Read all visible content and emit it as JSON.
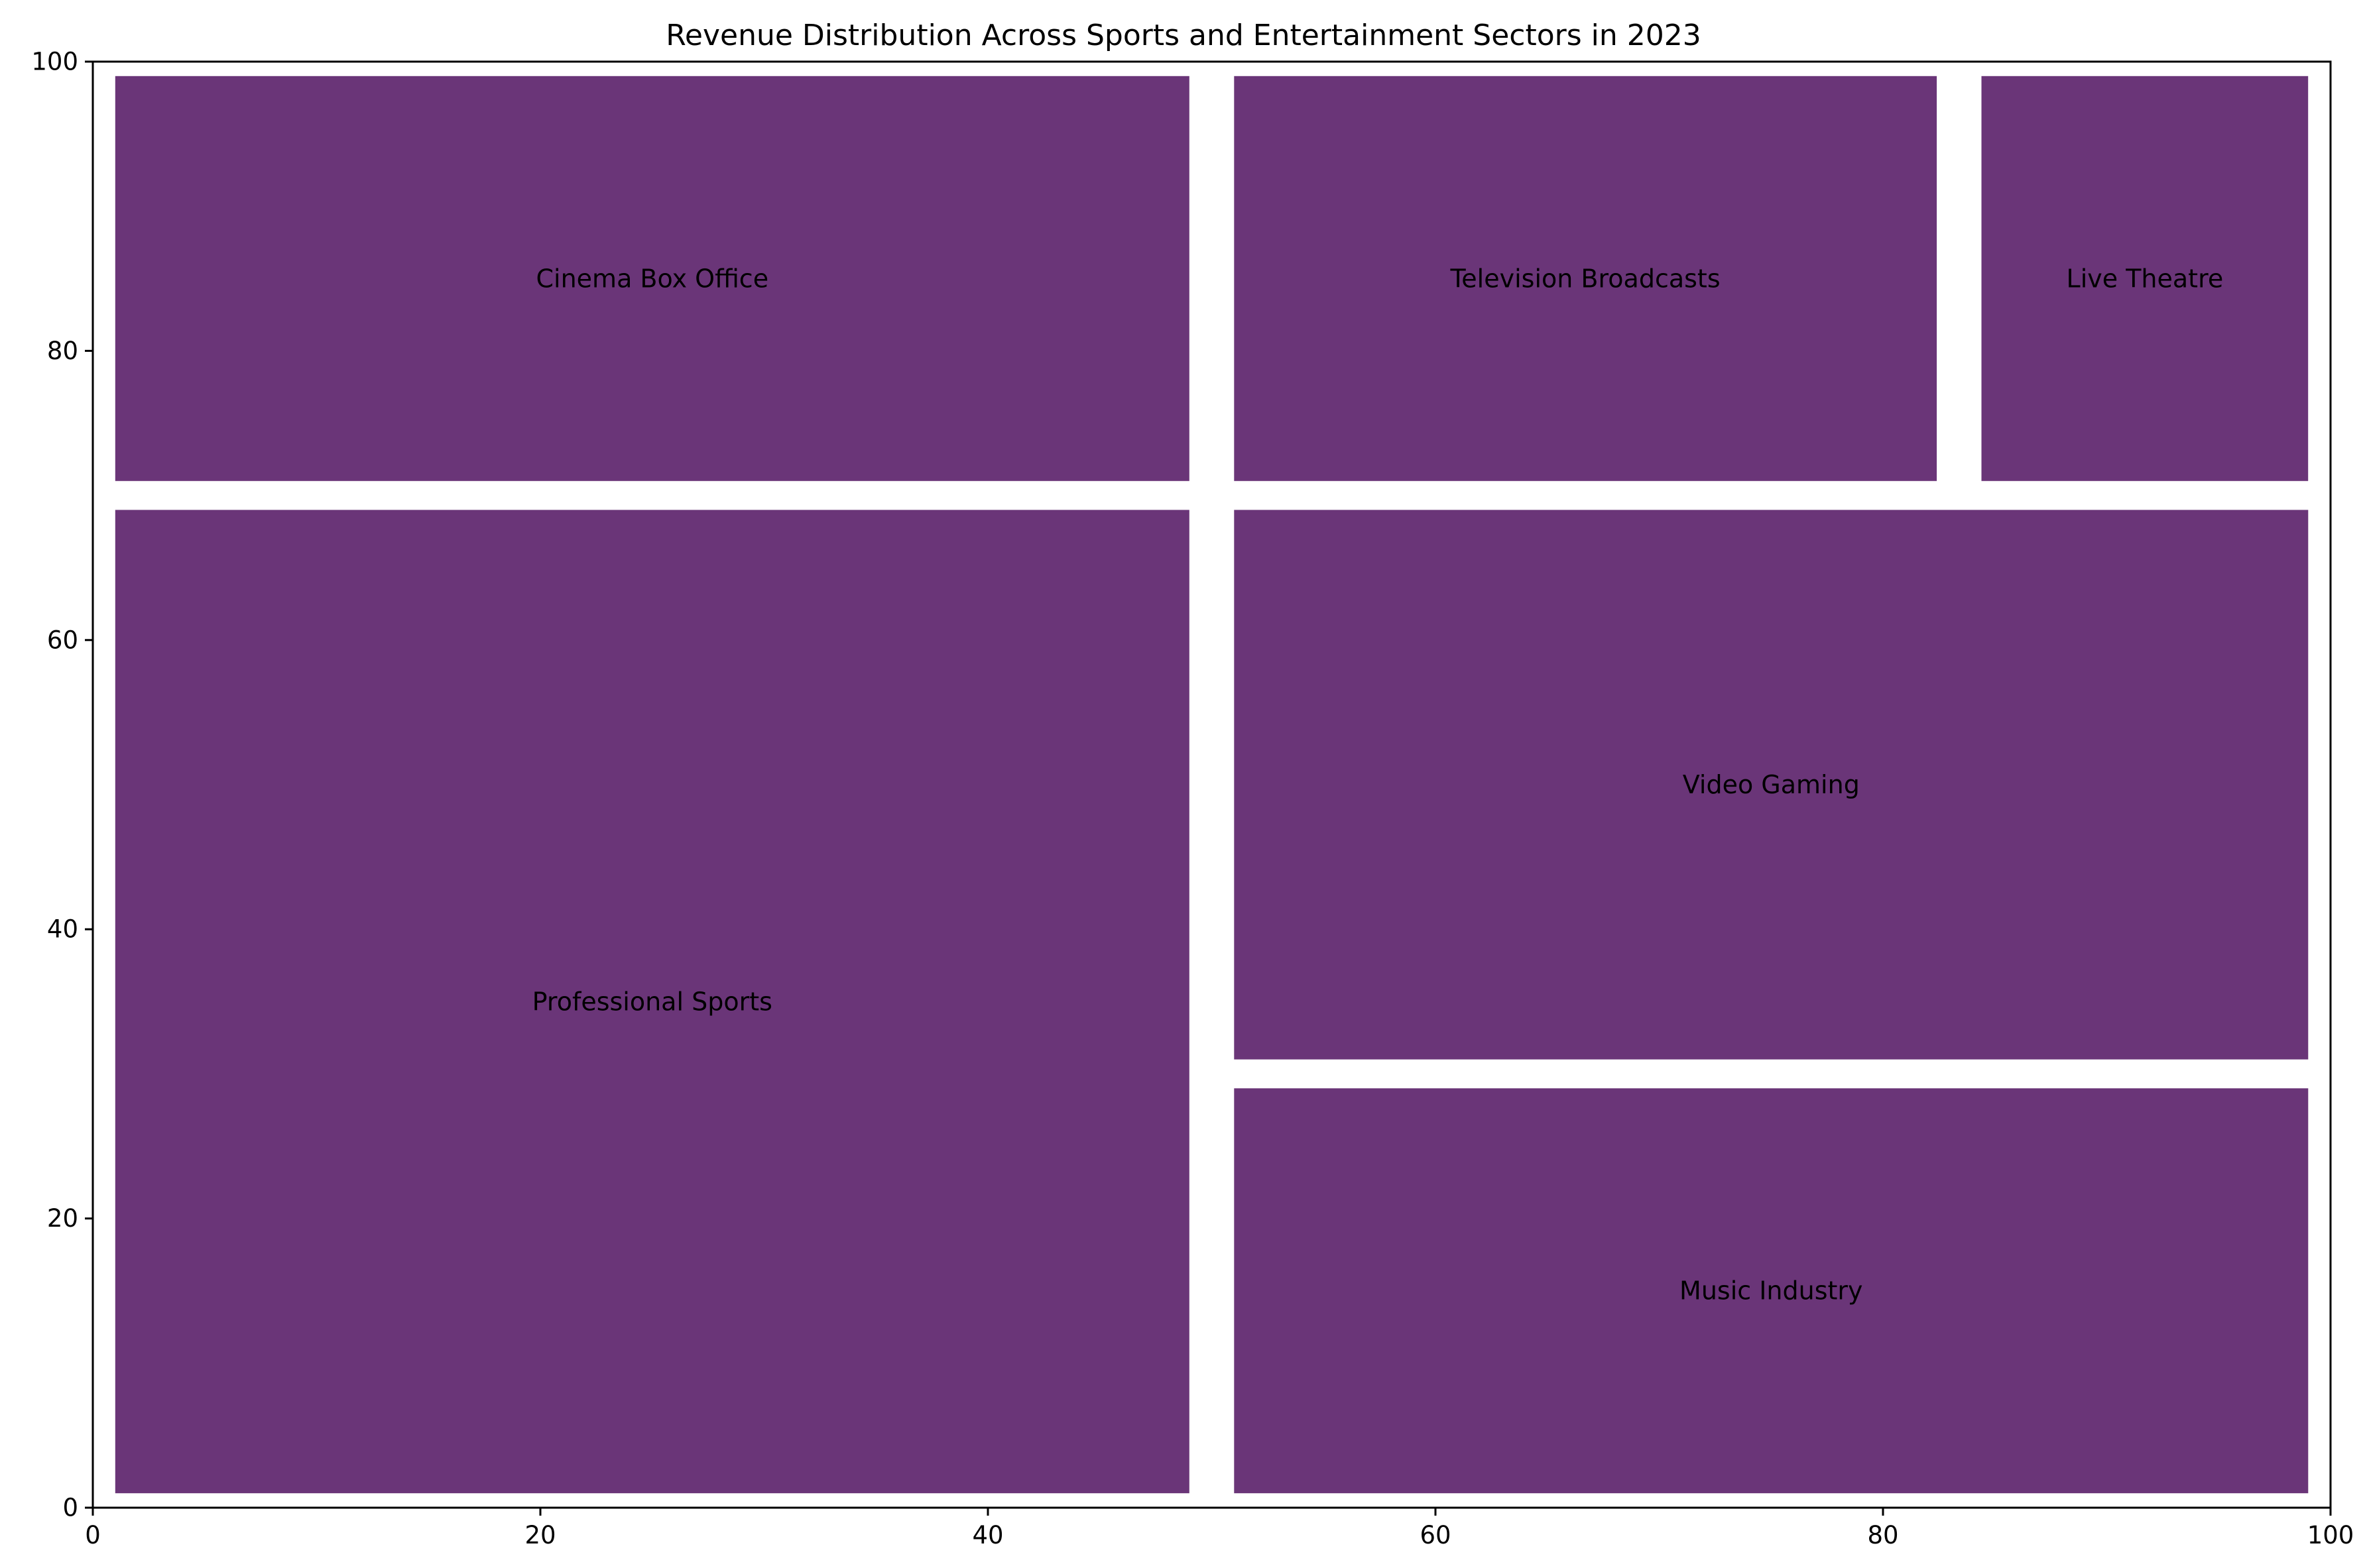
{
  "chart_data": {
    "type": "treemap",
    "title": "Revenue Distribution Across Sports and Entertainment Sectors in 2023",
    "xlabel": "",
    "ylabel": "",
    "xlim": [
      0,
      100
    ],
    "ylim": [
      0,
      100
    ],
    "xticks": [
      "0",
      "20",
      "40",
      "60",
      "80",
      "100"
    ],
    "yticks": [
      "0",
      "20",
      "40",
      "60",
      "80",
      "100"
    ],
    "grid": false,
    "fill_color": "#6a3578",
    "rects": [
      {
        "label": "Cinema Box Office",
        "x": 0,
        "y": 70,
        "dx": 50,
        "dy": 30
      },
      {
        "label": "Television Broadcasts",
        "x": 50,
        "y": 70,
        "dx": 33.4,
        "dy": 30
      },
      {
        "label": "Live Theatre",
        "x": 83.4,
        "y": 70,
        "dx": 16.6,
        "dy": 30
      },
      {
        "label": "Professional Sports",
        "x": 0,
        "y": 0,
        "dx": 50,
        "dy": 70
      },
      {
        "label": "Video Gaming",
        "x": 50,
        "y": 30,
        "dx": 50,
        "dy": 40
      },
      {
        "label": "Music Industry",
        "x": 50,
        "y": 0,
        "dx": 50,
        "dy": 30
      }
    ]
  }
}
